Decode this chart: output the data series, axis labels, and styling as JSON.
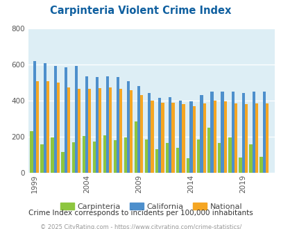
{
  "title": "Carpinteria Violent Crime Index",
  "title_color": "#1060a0",
  "subtitle": "Crime Index corresponds to incidents per 100,000 inhabitants",
  "footer": "© 2025 CityRating.com - https://www.cityrating.com/crime-statistics/",
  "years": [
    1999,
    2000,
    2001,
    2002,
    2003,
    2004,
    2005,
    2006,
    2007,
    2008,
    2009,
    2010,
    2011,
    2012,
    2013,
    2014,
    2015,
    2016,
    2017,
    2018,
    2019,
    2020,
    2021
  ],
  "carpinteria": [
    230,
    160,
    195,
    115,
    170,
    205,
    175,
    210,
    180,
    195,
    285,
    185,
    130,
    165,
    140,
    80,
    185,
    250,
    165,
    195,
    85,
    160,
    90
  ],
  "california": [
    620,
    610,
    595,
    585,
    595,
    535,
    530,
    535,
    530,
    510,
    480,
    445,
    415,
    420,
    400,
    395,
    430,
    450,
    450,
    450,
    445,
    450,
    450
  ],
  "national": [
    510,
    510,
    500,
    475,
    465,
    465,
    470,
    475,
    465,
    460,
    430,
    400,
    390,
    390,
    380,
    370,
    385,
    400,
    395,
    385,
    380,
    385,
    385
  ],
  "bar_width": 0.28,
  "ylim": [
    0,
    800
  ],
  "yticks": [
    0,
    200,
    400,
    600,
    800
  ],
  "xticks": [
    1999,
    2004,
    2009,
    2014,
    2019
  ],
  "color_carpinteria": "#8dc63f",
  "color_california": "#4d8fcc",
  "color_national": "#f5a623",
  "bg_color": "#ddeef5",
  "grid_color": "#ffffff",
  "fig_bg": "#ffffff"
}
